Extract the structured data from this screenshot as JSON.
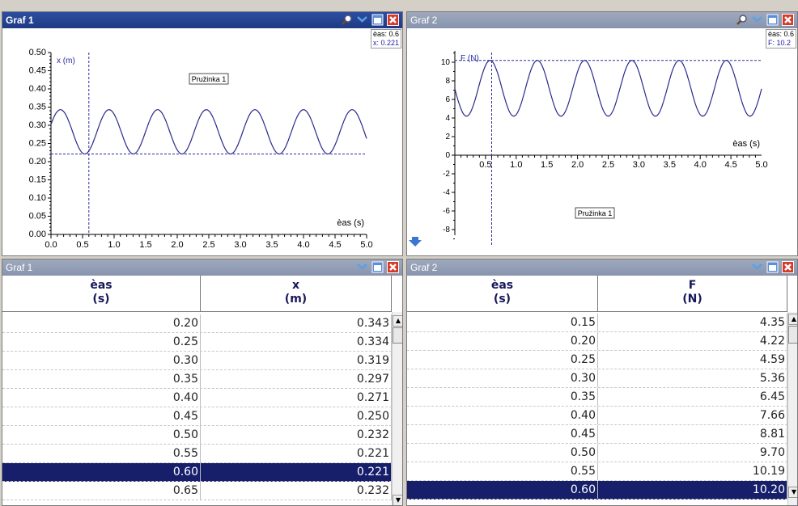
{
  "graph1": {
    "title": "Graf 1",
    "readout_t": "èas: 0.6",
    "readout_v": "x: 0.221",
    "ylabel": "x (m)",
    "xlabel": "èas (s)",
    "legend": "Pružinka 1",
    "yticks": [
      "0.00",
      "0.05",
      "0.10",
      "0.15",
      "0.20",
      "0.25",
      "0.30",
      "0.35",
      "0.40",
      "0.45",
      "0.50"
    ],
    "xticks": [
      "0.0",
      "0.5",
      "1.0",
      "1.5",
      "2.0",
      "2.5",
      "3.0",
      "3.5",
      "4.0",
      "4.5",
      "5.0"
    ]
  },
  "graph2": {
    "title": "Graf 2",
    "readout_t": "èas: 0.6",
    "readout_v": "F: 10.2",
    "ylabel": "F (N)",
    "xlabel": "èas (s)",
    "legend": "Pružinka 1",
    "yticks": [
      "-8",
      "-6",
      "-4",
      "-2",
      "0",
      "2",
      "4",
      "6",
      "8",
      "10"
    ],
    "xticks": [
      "0.5",
      "1.0",
      "1.5",
      "2.0",
      "2.5",
      "3.0",
      "3.5",
      "4.0",
      "4.5",
      "5.0"
    ]
  },
  "table1": {
    "title": "Graf 1",
    "col1_name": "èas",
    "col1_unit": "(s)",
    "col2_name": "x",
    "col2_unit": "(m)",
    "rows": [
      [
        "0.20",
        "0.343"
      ],
      [
        "0.25",
        "0.334"
      ],
      [
        "0.30",
        "0.319"
      ],
      [
        "0.35",
        "0.297"
      ],
      [
        "0.40",
        "0.271"
      ],
      [
        "0.45",
        "0.250"
      ],
      [
        "0.50",
        "0.232"
      ],
      [
        "0.55",
        "0.221"
      ],
      [
        "0.60",
        "0.221"
      ],
      [
        "0.65",
        "0.232"
      ]
    ],
    "selected_index": 8
  },
  "table2": {
    "title": "Graf 2",
    "col1_name": "èas",
    "col1_unit": "(s)",
    "col2_name": "F",
    "col2_unit": "(N)",
    "rows": [
      [
        "0.15",
        "4.35"
      ],
      [
        "0.20",
        "4.22"
      ],
      [
        "0.25",
        "4.59"
      ],
      [
        "0.30",
        "5.36"
      ],
      [
        "0.35",
        "6.45"
      ],
      [
        "0.40",
        "7.66"
      ],
      [
        "0.45",
        "8.81"
      ],
      [
        "0.50",
        "9.70"
      ],
      [
        "0.55",
        "10.19"
      ],
      [
        "0.60",
        "10.20"
      ]
    ],
    "selected_index": 9
  },
  "chart_data": [
    {
      "type": "line",
      "title": "Graf 1",
      "xlabel": "èas (s)",
      "ylabel": "x (m)",
      "xlim": [
        0,
        5.0
      ],
      "ylim": [
        0,
        0.5
      ],
      "series": [
        {
          "name": "Pružinka 1",
          "model": {
            "offset": 0.282,
            "amplitude": 0.061,
            "period": 0.77,
            "max_at": 0.15
          }
        }
      ],
      "cursor": {
        "x": 0.6,
        "y": 0.221
      }
    },
    {
      "type": "line",
      "title": "Graf 2",
      "xlabel": "èas (s)",
      "ylabel": "F (N)",
      "xlim": [
        0,
        5.0
      ],
      "ylim": [
        -9,
        10.5
      ],
      "series": [
        {
          "name": "Pružinka 1",
          "model": {
            "offset": 7.2,
            "amplitude": 3.0,
            "period": 0.77,
            "min_at": 0.19
          }
        }
      ],
      "cursor": {
        "x": 0.6,
        "y": 10.2
      }
    }
  ]
}
